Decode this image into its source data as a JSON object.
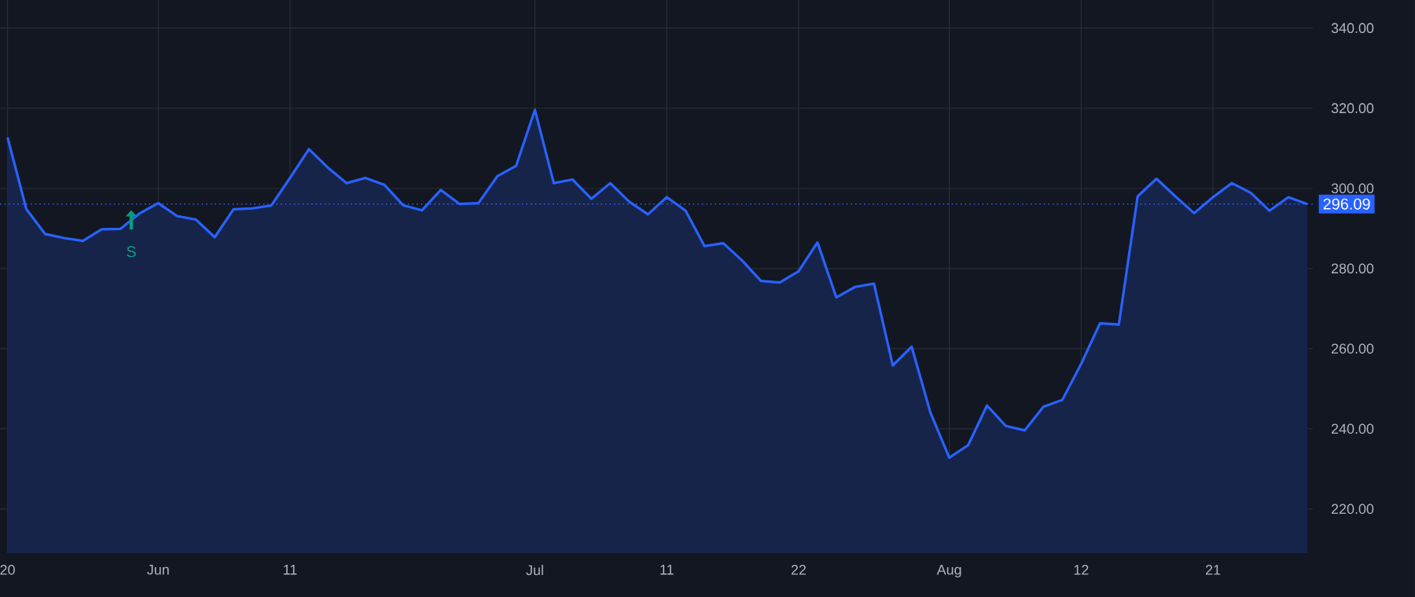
{
  "chart_data": {
    "type": "area",
    "categories": [
      "20",
      null,
      null,
      null,
      null,
      null,
      null,
      null,
      "Jun",
      null,
      null,
      null,
      null,
      null,
      null,
      "11",
      null,
      null,
      null,
      null,
      null,
      null,
      null,
      null,
      null,
      null,
      null,
      null,
      "Jul",
      null,
      null,
      null,
      null,
      null,
      null,
      "11",
      null,
      null,
      null,
      null,
      null,
      null,
      "22",
      null,
      null,
      null,
      null,
      null,
      null,
      null,
      "Aug",
      null,
      null,
      null,
      null,
      null,
      null,
      "12",
      null,
      null,
      null,
      null,
      null,
      null,
      "21",
      null,
      null,
      null,
      null,
      null
    ],
    "series": [
      {
        "color": "#2962ff",
        "values": [
          312.7,
          294.8,
          288.6,
          287.6,
          286.9,
          289.8,
          289.9,
          293.7,
          296.3,
          293.1,
          292.2,
          287.8,
          294.8,
          295.0,
          295.7,
          302.6,
          309.8,
          305.2,
          301.3,
          302.6,
          300.9,
          295.8,
          294.5,
          299.6,
          296.1,
          296.3,
          303.0,
          305.6,
          319.6,
          301.3,
          302.2,
          297.4,
          301.3,
          296.7,
          293.5,
          297.8,
          294.4,
          285.6,
          286.3,
          282.0,
          276.9,
          276.5,
          279.3,
          286.5,
          272.8,
          275.4,
          276.2,
          255.8,
          260.5,
          244.0,
          232.8,
          235.9,
          245.8,
          240.7,
          239.6,
          245.5,
          247.2,
          256.2,
          266.3,
          266.0,
          298.0,
          302.4,
          298.0,
          293.8,
          297.8,
          301.3,
          298.9,
          294.4,
          297.8,
          296.09
        ]
      }
    ],
    "ylim": [
      209,
      347
    ],
    "yticks": [
      {
        "value": 220,
        "label": "220.00"
      },
      {
        "value": 240,
        "label": "240.00"
      },
      {
        "value": 260,
        "label": "260.00"
      },
      {
        "value": 280,
        "label": "280.00"
      },
      {
        "value": 300,
        "label": "300.00"
      },
      {
        "value": 320,
        "label": "320.00"
      },
      {
        "value": 340,
        "label": "340.00"
      }
    ],
    "grid": true,
    "ref_lines": [
      {
        "axis": "y",
        "value": 296.09,
        "label": "296.09",
        "color": "#2962ff",
        "line_style": "dotted"
      }
    ],
    "annotations": [
      "S"
    ]
  }
}
